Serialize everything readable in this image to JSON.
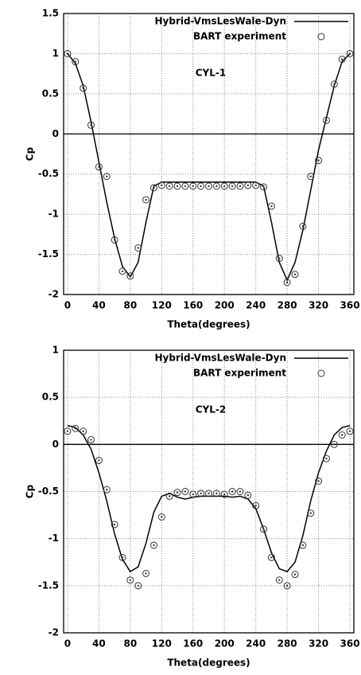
{
  "chart_data": [
    {
      "type": "line",
      "annotation": "CYL-1",
      "xlabel": "Theta(degrees)",
      "ylabel": "Cp",
      "xlim": [
        -5,
        365
      ],
      "ylim": [
        -2,
        1.5
      ],
      "xticks": [
        0,
        40,
        80,
        120,
        160,
        200,
        240,
        280,
        320,
        360
      ],
      "yticks": [
        -2,
        -1.5,
        -1,
        -0.5,
        0,
        0.5,
        1,
        1.5
      ],
      "grid": true,
      "zero_line": true,
      "legend": "upper right",
      "x": [
        0,
        10,
        20,
        30,
        40,
        50,
        60,
        70,
        80,
        90,
        100,
        110,
        120,
        130,
        140,
        150,
        160,
        170,
        180,
        190,
        200,
        210,
        220,
        230,
        240,
        250,
        260,
        270,
        280,
        290,
        300,
        310,
        320,
        330,
        340,
        350,
        360
      ],
      "series": [
        {
          "name": "Hybrid-VmsLesWale-Dyn",
          "style": "line",
          "color": "#000000",
          "values": [
            1.0,
            0.88,
            0.6,
            0.15,
            -0.35,
            -0.85,
            -1.3,
            -1.65,
            -1.78,
            -1.6,
            -1.1,
            -0.65,
            -0.6,
            -0.6,
            -0.6,
            -0.6,
            -0.6,
            -0.6,
            -0.6,
            -0.6,
            -0.6,
            -0.6,
            -0.6,
            -0.6,
            -0.6,
            -0.65,
            -1.1,
            -1.6,
            -1.82,
            -1.6,
            -1.2,
            -0.7,
            -0.2,
            0.2,
            0.6,
            0.9,
            1.0
          ]
        },
        {
          "name": "BART experiment",
          "style": "points",
          "color": "#333333",
          "values": [
            1.0,
            0.9,
            0.57,
            0.11,
            -0.41,
            -0.53,
            -1.32,
            -1.71,
            -1.77,
            -1.42,
            -0.82,
            -0.67,
            -0.64,
            -0.65,
            -0.65,
            -0.65,
            -0.65,
            -0.65,
            -0.65,
            -0.65,
            -0.65,
            -0.65,
            -0.65,
            -0.64,
            -0.64,
            -0.66,
            -0.9,
            -1.55,
            -1.85,
            -1.75,
            -1.15,
            -0.53,
            -0.33,
            0.17,
            0.62,
            0.93,
            1.0
          ]
        }
      ]
    },
    {
      "type": "line",
      "annotation": "CYL-2",
      "xlabel": "Theta(degrees)",
      "ylabel": "Cp",
      "xlim": [
        -5,
        365
      ],
      "ylim": [
        -2,
        1
      ],
      "xticks": [
        0,
        40,
        80,
        120,
        160,
        200,
        240,
        280,
        320,
        360
      ],
      "yticks": [
        -2,
        -1.5,
        -1,
        -0.5,
        0,
        0.5,
        1
      ],
      "grid": true,
      "zero_line": true,
      "legend": "upper right",
      "x": [
        0,
        10,
        20,
        30,
        40,
        50,
        60,
        70,
        80,
        90,
        100,
        110,
        120,
        130,
        140,
        150,
        160,
        170,
        180,
        190,
        200,
        210,
        220,
        230,
        240,
        250,
        260,
        270,
        280,
        290,
        300,
        310,
        320,
        330,
        340,
        350,
        360
      ],
      "series": [
        {
          "name": "Hybrid-VmsLesWale-Dyn",
          "style": "line",
          "color": "#000000",
          "values": [
            0.2,
            0.18,
            0.1,
            -0.05,
            -0.3,
            -0.6,
            -0.95,
            -1.22,
            -1.35,
            -1.3,
            -1.05,
            -0.72,
            -0.55,
            -0.52,
            -0.56,
            -0.58,
            -0.56,
            -0.55,
            -0.55,
            -0.55,
            -0.55,
            -0.56,
            -0.55,
            -0.58,
            -0.68,
            -0.9,
            -1.15,
            -1.32,
            -1.35,
            -1.25,
            -0.97,
            -0.6,
            -0.3,
            -0.07,
            0.1,
            0.18,
            0.2
          ]
        },
        {
          "name": "BART experiment",
          "style": "points",
          "color": "#333333",
          "values": [
            0.14,
            0.17,
            0.14,
            0.05,
            -0.17,
            -0.48,
            -0.85,
            -1.2,
            -1.44,
            -1.5,
            -1.37,
            -1.07,
            -0.77,
            -0.55,
            -0.51,
            -0.5,
            -0.53,
            -0.52,
            -0.52,
            -0.52,
            -0.53,
            -0.5,
            -0.5,
            -0.54,
            -0.65,
            -0.9,
            -1.2,
            -1.44,
            -1.5,
            -1.38,
            -1.07,
            -0.73,
            -0.39,
            -0.15,
            0.0,
            0.1,
            0.14
          ]
        }
      ]
    }
  ]
}
